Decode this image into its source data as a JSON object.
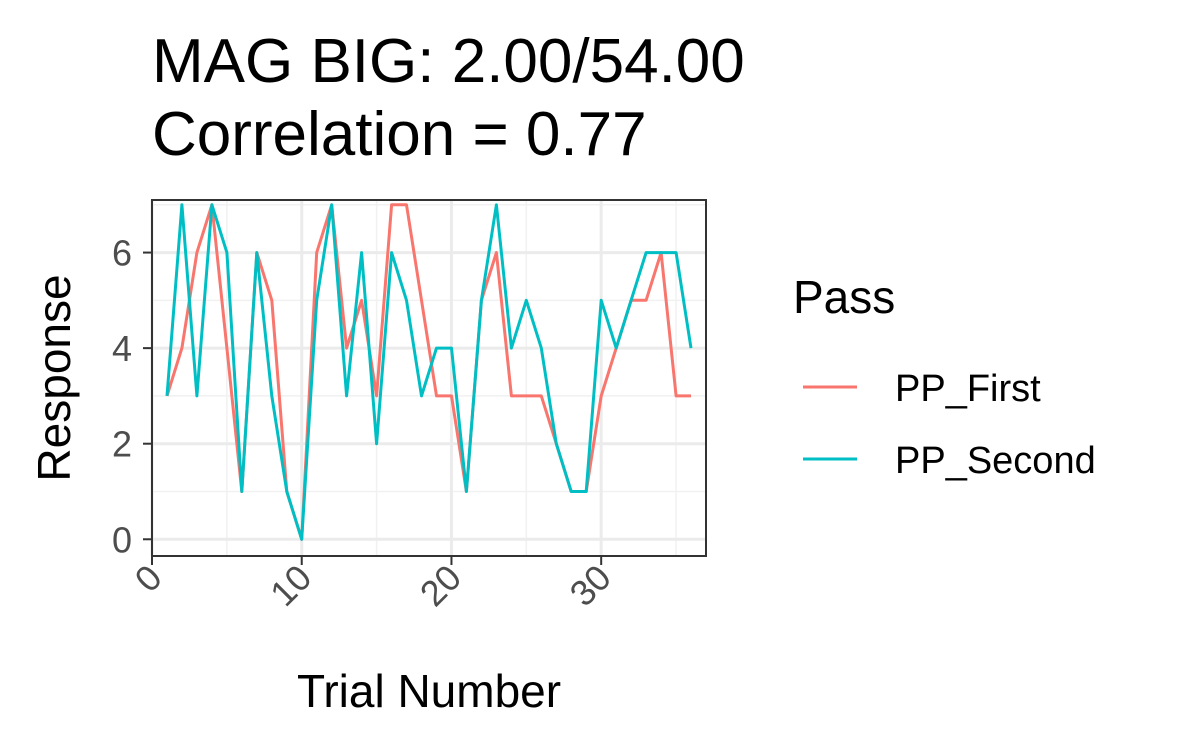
{
  "chart_data": {
    "type": "line",
    "title": [
      "MAG BIG: 2.00/54.00",
      "Correlation =  0.77"
    ],
    "xlabel": "Trial Number",
    "ylabel": "Response",
    "xlim": [
      0,
      37
    ],
    "ylim": [
      -0.35,
      7.1
    ],
    "x_ticks": [
      0,
      10,
      20,
      30
    ],
    "y_ticks": [
      0,
      2,
      4,
      6
    ],
    "grid": true,
    "legend": {
      "title": "Pass",
      "position": "right"
    },
    "x": [
      1,
      2,
      3,
      4,
      5,
      6,
      7,
      8,
      9,
      10,
      11,
      12,
      13,
      14,
      15,
      16,
      17,
      18,
      19,
      20,
      21,
      22,
      23,
      24,
      25,
      26,
      27,
      28,
      29,
      30,
      31,
      32,
      33,
      34,
      35,
      36
    ],
    "series": [
      {
        "name": "PP_First",
        "color": "#F8766D",
        "values": [
          3,
          4,
          6,
          7,
          4,
          1,
          6,
          5,
          1,
          0,
          6,
          7,
          4,
          5,
          3,
          7,
          7,
          5,
          3,
          3,
          1,
          5,
          6,
          3,
          3,
          3,
          2,
          1,
          1,
          3,
          4,
          5,
          5,
          6,
          3,
          3
        ]
      },
      {
        "name": "PP_Second",
        "color": "#00BFC4",
        "values": [
          3,
          7,
          3,
          7,
          6,
          1,
          6,
          3,
          1,
          0,
          5,
          7,
          3,
          6,
          2,
          6,
          5,
          3,
          4,
          4,
          1,
          5,
          7,
          4,
          5,
          4,
          2,
          1,
          1,
          5,
          4,
          5,
          6,
          6,
          6,
          4
        ]
      }
    ]
  }
}
